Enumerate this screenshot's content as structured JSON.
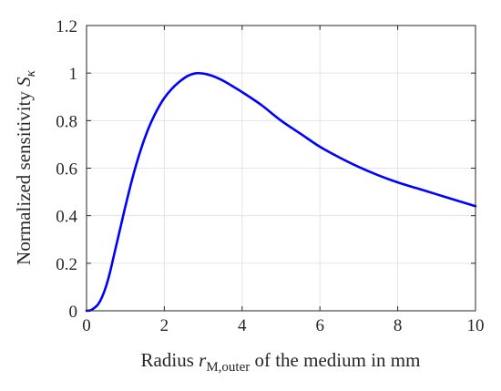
{
  "chart_data": {
    "type": "line",
    "xlabel_parts": [
      "Radius ",
      "r",
      "M,outer",
      " of the medium in mm"
    ],
    "ylabel_parts": [
      "Normalized sensitivity ",
      "S",
      "κ"
    ],
    "xlim": [
      0,
      10
    ],
    "ylim": [
      0,
      1.2
    ],
    "xticks": [
      "0",
      "2",
      "4",
      "6",
      "8",
      "10"
    ],
    "yticks": [
      "0",
      "0.2",
      "0.4",
      "0.6",
      "0.8",
      "1",
      "1.2"
    ],
    "grid": true,
    "series": [
      {
        "color": "#0000ff",
        "x": [
          0,
          0.1,
          0.2,
          0.3,
          0.4,
          0.5,
          0.6,
          0.7,
          0.8,
          0.9,
          1.0,
          1.2,
          1.4,
          1.6,
          1.8,
          2.0,
          2.2,
          2.4,
          2.6,
          2.8,
          3.0,
          3.2,
          3.4,
          3.6,
          3.8,
          4.0,
          4.5,
          5.0,
          5.5,
          6.0,
          6.5,
          7.0,
          7.5,
          8.0,
          8.5,
          9.0,
          9.5,
          10.0
        ],
        "y": [
          0,
          0.002,
          0.012,
          0.028,
          0.058,
          0.102,
          0.16,
          0.23,
          0.3,
          0.37,
          0.44,
          0.57,
          0.68,
          0.77,
          0.84,
          0.895,
          0.935,
          0.965,
          0.988,
          0.999,
          0.998,
          0.99,
          0.977,
          0.96,
          0.94,
          0.92,
          0.865,
          0.8,
          0.745,
          0.69,
          0.645,
          0.605,
          0.57,
          0.54,
          0.515,
          0.49,
          0.465,
          0.44
        ]
      }
    ]
  }
}
